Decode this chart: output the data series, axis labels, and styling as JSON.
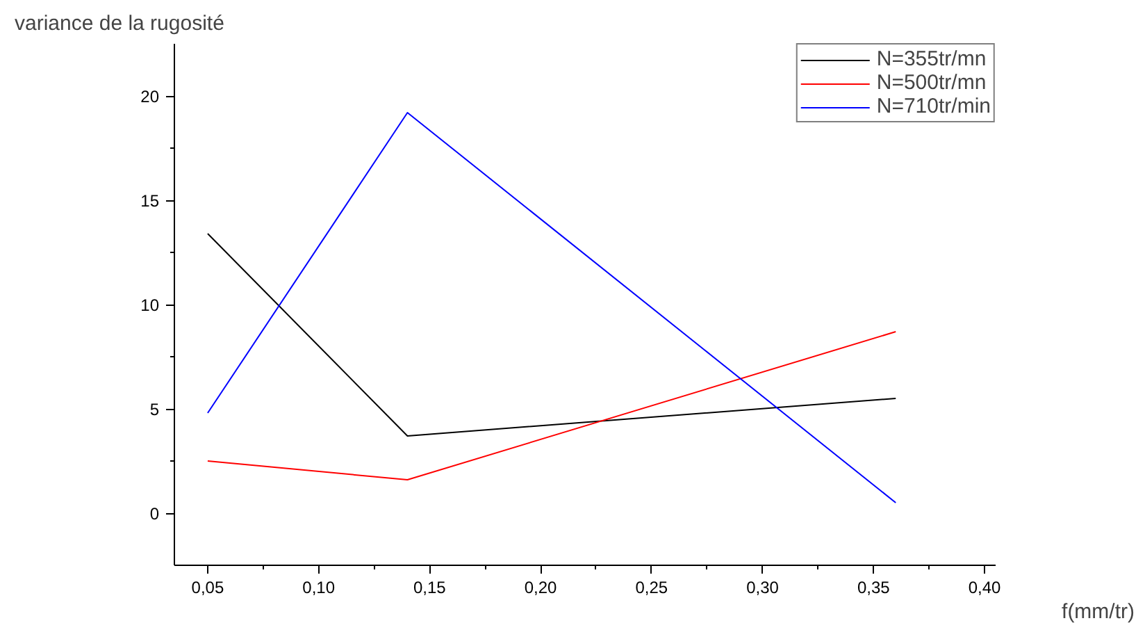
{
  "chart_data": {
    "type": "line",
    "ylabel": "variance de la rugosité",
    "xlabel": "f(mm/tr)",
    "x": [
      0.05,
      0.14,
      0.36
    ],
    "series": [
      {
        "name": "N=355tr/mn",
        "color": "#000000",
        "values": [
          13.4,
          3.7,
          5.5
        ]
      },
      {
        "name": "N=500tr/mn",
        "color": "#ff0000",
        "values": [
          2.5,
          1.6,
          8.7
        ]
      },
      {
        "name": "N=710tr/min",
        "color": "#0000ff",
        "values": [
          4.8,
          19.2,
          0.5
        ]
      }
    ],
    "xlim": [
      0.035,
      0.405
    ],
    "ylim": [
      -2.5,
      22.5
    ],
    "xticks": [
      {
        "value": 0.05,
        "label": "0,05"
      },
      {
        "value": 0.1,
        "label": "0,10"
      },
      {
        "value": 0.15,
        "label": "0,15"
      },
      {
        "value": 0.2,
        "label": "0,20"
      },
      {
        "value": 0.25,
        "label": "0,25"
      },
      {
        "value": 0.3,
        "label": "0,30"
      },
      {
        "value": 0.35,
        "label": "0,35"
      },
      {
        "value": 0.4,
        "label": "0,40"
      }
    ],
    "yticks": [
      0,
      5,
      10,
      15,
      20
    ],
    "grid": false,
    "legend": "top right",
    "marker": "none",
    "line_style": "solid"
  }
}
